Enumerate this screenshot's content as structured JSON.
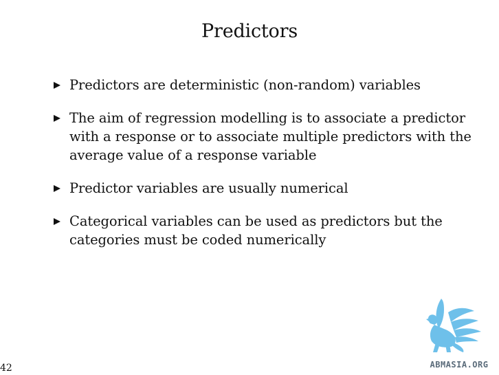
{
  "slide": {
    "title": "Predictors",
    "bullets": [
      "Predictors are deterministic (non-random) variables",
      "The aim of regression modelling is to associate a predictor with a response or to associate multiple predictors with the average value of a response variable",
      "Predictor variables are usually numerical",
      "Categorical variables can be used as predictors but the categories must be coded numerically"
    ],
    "page_number": "42"
  },
  "logo": {
    "text": "ABMASIA.ORG",
    "icon": "griffin-logo-icon",
    "color": "#6ec0ea"
  }
}
